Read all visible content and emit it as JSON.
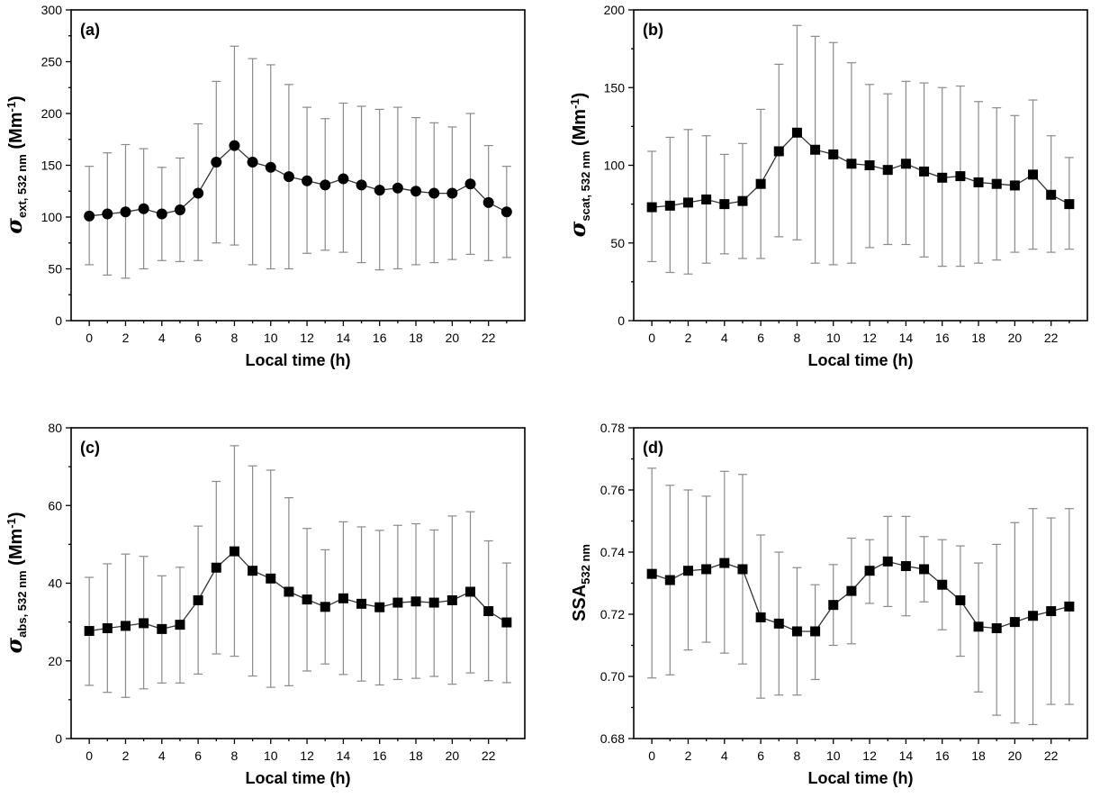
{
  "chart_data": [
    {
      "type": "line",
      "panel_label": "(a)",
      "ylabel": {
        "symbol": "σ",
        "sub": "ext, 532 nm",
        "unit": " (Mm",
        "unit_sup": "-1",
        "unit_end": ")"
      },
      "xlabel": "Local time (h)",
      "ylim": [
        0,
        300
      ],
      "yticks": [
        0,
        50,
        100,
        150,
        200,
        250,
        300
      ],
      "xlim": [
        -1,
        24
      ],
      "xticks": [
        0,
        2,
        4,
        6,
        8,
        10,
        12,
        14,
        16,
        18,
        20,
        22
      ],
      "marker": "circle",
      "x": [
        0,
        1,
        2,
        3,
        4,
        5,
        6,
        7,
        8,
        9,
        10,
        11,
        12,
        13,
        14,
        15,
        16,
        17,
        18,
        19,
        20,
        21,
        22,
        23
      ],
      "values": [
        101,
        103,
        105,
        108,
        103,
        107,
        123,
        153,
        169,
        153,
        148,
        139,
        135,
        131,
        137,
        131,
        126,
        128,
        125,
        123,
        123,
        132,
        114,
        105
      ],
      "err_low": [
        54,
        44,
        41,
        50,
        58,
        57,
        58,
        75,
        73,
        54,
        50,
        50,
        65,
        68,
        66,
        56,
        49,
        50,
        54,
        56,
        59,
        64,
        58,
        61
      ],
      "err_high": [
        149,
        162,
        170,
        166,
        148,
        157,
        190,
        231,
        265,
        253,
        247,
        228,
        206,
        195,
        210,
        207,
        204,
        206,
        196,
        191,
        187,
        200,
        169,
        149
      ]
    },
    {
      "type": "line",
      "panel_label": "(b)",
      "ylabel": {
        "symbol": "σ",
        "sub": "scat, 532 nm",
        "unit": " (Mm",
        "unit_sup": "-1",
        "unit_end": ")"
      },
      "xlabel": "Local time (h)",
      "ylim": [
        0,
        200
      ],
      "yticks": [
        0,
        50,
        100,
        150,
        200
      ],
      "xlim": [
        -1,
        24
      ],
      "xticks": [
        0,
        2,
        4,
        6,
        8,
        10,
        12,
        14,
        16,
        18,
        20,
        22
      ],
      "marker": "square",
      "x": [
        0,
        1,
        2,
        3,
        4,
        5,
        6,
        7,
        8,
        9,
        10,
        11,
        12,
        13,
        14,
        15,
        16,
        17,
        18,
        19,
        20,
        21,
        22,
        23
      ],
      "values": [
        73,
        74,
        76,
        78,
        75,
        77,
        88,
        109,
        121,
        110,
        107,
        101,
        100,
        97,
        101,
        96,
        92,
        93,
        89,
        88,
        87,
        94,
        81,
        75
      ],
      "err_low": [
        38,
        31,
        30,
        37,
        43,
        40,
        40,
        54,
        52,
        37,
        36,
        37,
        47,
        49,
        49,
        41,
        35,
        35,
        37,
        39,
        44,
        46,
        44,
        46
      ],
      "err_high": [
        109,
        118,
        123,
        119,
        107,
        114,
        136,
        165,
        190,
        183,
        179,
        166,
        152,
        146,
        154,
        153,
        150,
        151,
        141,
        137,
        132,
        142,
        119,
        105
      ]
    },
    {
      "type": "line",
      "panel_label": "(c)",
      "ylabel": {
        "symbol": "σ",
        "sub": "abs, 532 nm",
        "unit": " (Mm",
        "unit_sup": "-1",
        "unit_end": ")"
      },
      "xlabel": "Local time (h)",
      "ylim": [
        0,
        80
      ],
      "yticks": [
        0,
        20,
        40,
        60,
        80
      ],
      "xlim": [
        -1,
        24
      ],
      "xticks": [
        0,
        2,
        4,
        6,
        8,
        10,
        12,
        14,
        16,
        18,
        20,
        22
      ],
      "marker": "square",
      "x": [
        0,
        1,
        2,
        3,
        4,
        5,
        6,
        7,
        8,
        9,
        10,
        11,
        12,
        13,
        14,
        15,
        16,
        17,
        18,
        19,
        20,
        21,
        22,
        23
      ],
      "values": [
        27.7,
        28.4,
        29.0,
        29.7,
        28.2,
        29.3,
        35.6,
        44.0,
        48.2,
        43.2,
        41.2,
        37.8,
        35.8,
        33.9,
        36.1,
        34.7,
        33.8,
        35.0,
        35.3,
        35.0,
        35.6,
        37.8,
        32.8,
        29.9
      ],
      "err_low": [
        13.7,
        11.9,
        10.6,
        12.8,
        14.3,
        14.3,
        16.6,
        21.8,
        21.2,
        16.1,
        13.2,
        13.6,
        17.4,
        19.2,
        16.5,
        14.8,
        13.8,
        15.2,
        15.5,
        16.0,
        14.0,
        16.9,
        14.9,
        14.4
      ],
      "err_high": [
        41.5,
        45.0,
        47.5,
        46.9,
        41.9,
        44.1,
        54.7,
        66.2,
        75.4,
        70.2,
        69.1,
        62.0,
        54.1,
        48.6,
        55.8,
        54.5,
        53.6,
        54.9,
        55.3,
        53.7,
        57.3,
        58.4,
        50.9,
        45.2
      ]
    },
    {
      "type": "line",
      "panel_label": "(d)",
      "ylabel": {
        "symbol": "",
        "sub": "532 nm",
        "prefix": "SSA",
        "unit": "",
        "unit_sup": "",
        "unit_end": ""
      },
      "xlabel": "Local time (h)",
      "ylim": [
        0.68,
        0.78
      ],
      "yticks": [
        0.68,
        0.7,
        0.72,
        0.74,
        0.76,
        0.78
      ],
      "ytick_labels": [
        "0.68",
        "0.70",
        "0.72",
        "0.74",
        "0.76",
        "0.78"
      ],
      "xlim": [
        -1,
        24
      ],
      "xticks": [
        0,
        2,
        4,
        6,
        8,
        10,
        12,
        14,
        16,
        18,
        20,
        22
      ],
      "marker": "square",
      "x": [
        0,
        1,
        2,
        3,
        4,
        5,
        6,
        7,
        8,
        9,
        10,
        11,
        12,
        13,
        14,
        15,
        16,
        17,
        18,
        19,
        20,
        21,
        22,
        23
      ],
      "values": [
        0.733,
        0.731,
        0.734,
        0.7345,
        0.7365,
        0.7345,
        0.719,
        0.717,
        0.7145,
        0.7145,
        0.723,
        0.7275,
        0.734,
        0.737,
        0.7355,
        0.7345,
        0.7295,
        0.7245,
        0.716,
        0.7155,
        0.7175,
        0.7195,
        0.721,
        0.7225
      ],
      "err_low": [
        0.6995,
        0.7005,
        0.7085,
        0.711,
        0.7075,
        0.704,
        0.693,
        0.694,
        0.694,
        0.699,
        0.71,
        0.7105,
        0.7235,
        0.7225,
        0.7195,
        0.724,
        0.715,
        0.7065,
        0.695,
        0.6875,
        0.685,
        0.6845,
        0.691,
        0.691
      ],
      "err_high": [
        0.767,
        0.7615,
        0.76,
        0.758,
        0.766,
        0.765,
        0.7455,
        0.74,
        0.735,
        0.7295,
        0.736,
        0.7445,
        0.744,
        0.7515,
        0.7515,
        0.745,
        0.744,
        0.742,
        0.7365,
        0.7425,
        0.7495,
        0.754,
        0.751,
        0.754
      ]
    }
  ]
}
